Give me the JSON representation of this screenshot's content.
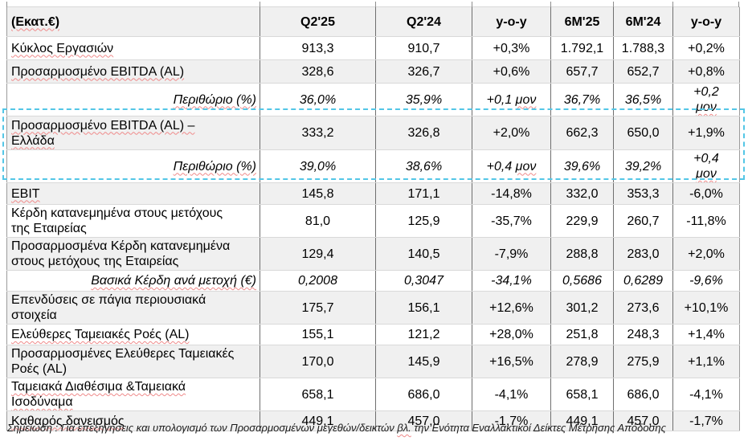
{
  "table": {
    "unit_header": "(Εκατ.€)",
    "columns": [
      "Q2'25",
      "Q2'24",
      "y-o-y",
      "6M'25",
      "6M'24",
      "y-o-y"
    ],
    "rows": [
      {
        "label": "Κύκλος Εργασιών",
        "italic": false,
        "squiggle": true,
        "values": [
          "913,3",
          "910,7",
          "+0,3%",
          "1.792,1",
          "1.788,3",
          "+0,2%"
        ]
      },
      {
        "label": "Προσαρμοσμένο EBITDA (AL)",
        "italic": false,
        "squiggle": true,
        "values": [
          "328,6",
          "326,7",
          "+0,6%",
          "657,7",
          "652,7",
          "+0,8%"
        ]
      },
      {
        "label": "Περιθώριο (%)",
        "italic": true,
        "squiggle": true,
        "values": [
          "36,0%",
          "35,9%",
          "+0,1 μον",
          "36,7%",
          "36,5%",
          "+0,2\nμον"
        ]
      },
      {
        "label": "Προσαρμοσμένο EBITDA (AL) –\nΕλλάδα",
        "italic": false,
        "squiggle": true,
        "values": [
          "333,2",
          "326,8",
          "+2,0%",
          "662,3",
          "650,0",
          "+1,9%"
        ]
      },
      {
        "label": "Περιθώριο (%)",
        "italic": true,
        "squiggle": true,
        "values": [
          "39,0%",
          "38,6%",
          "+0,4 μον",
          "39,6%",
          "39,2%",
          "+0,4\nμον"
        ]
      },
      {
        "label": "EBIT",
        "italic": false,
        "squiggle": true,
        "values": [
          "145,8",
          "171,1",
          "-14,8%",
          "332,0",
          "353,3",
          "-6,0%"
        ]
      },
      {
        "label": "Κέρδη κατανεμημένα στους μετόχους\nτης Εταιρείας",
        "italic": false,
        "squiggle": false,
        "values": [
          "81,0",
          "125,9",
          "-35,7%",
          "229,9",
          "260,7",
          "-11,8%"
        ]
      },
      {
        "label": "Προσαρμοσμένα Κέρδη κατανεμημένα\nστους μετόχους της Εταιρείας",
        "italic": false,
        "squiggle": false,
        "values": [
          "129,4",
          "140,5",
          "-7,9%",
          "288,8",
          "283,0",
          "+2,0%"
        ]
      },
      {
        "label": "Βασικά Κέρδη ανά μετοχή (€)",
        "italic": true,
        "squiggle": true,
        "values": [
          "0,2008",
          "0,3047",
          "-34,1%",
          "0,5686",
          "0,6289",
          "-9,6%"
        ]
      },
      {
        "label": "Επενδύσεις σε πάγια περιουσιακά\nστοιχεία",
        "italic": false,
        "squiggle": false,
        "values": [
          "175,7",
          "156,1",
          "+12,6%",
          "301,2",
          "273,6",
          "+10,1%"
        ]
      },
      {
        "label": "Ελεύθερες Ταμειακές Ροές (AL)",
        "italic": false,
        "squiggle": true,
        "values": [
          "155,1",
          "121,2",
          "+28,0%",
          "251,8",
          "248,3",
          "+1,4%"
        ]
      },
      {
        "label": "Προσαρμοσμένες Ελεύθερες Ταμειακές\nΡοές (AL)",
        "italic": false,
        "squiggle": false,
        "values": [
          "170,0",
          "145,9",
          "+16,5%",
          "278,9",
          "275,9",
          "+1,1%"
        ]
      },
      {
        "label": "Ταμειακά Διαθέσιμα &Ταμειακά\nΙσοδύναμα",
        "italic": false,
        "squiggle": true,
        "values": [
          "658,1",
          "686,0",
          "-4,1%",
          "658,1",
          "686,0",
          "-4,1%"
        ]
      },
      {
        "label": "Καθαρός δανεισμός",
        "italic": false,
        "squiggle": true,
        "values": [
          "449,1",
          "457,0",
          "-1,7%",
          "449,1",
          "457,0",
          "-1,7%"
        ]
      }
    ],
    "highlight": {
      "color": "#53c6e6",
      "first_row": "Προσαρμοσμένο EBITDA (AL) – Ελλάδα",
      "last_row": "Περιθώριο (%)"
    }
  },
  "footnote": "Σημείωση : Για επεξηγήσεις και υπολογισμό των Προσαρμοσμένων μεγεθών/δεικτών βλ. την Ενότητα Εναλλακτικοί Δείκτες Μέτρησης Απόδοσης"
}
